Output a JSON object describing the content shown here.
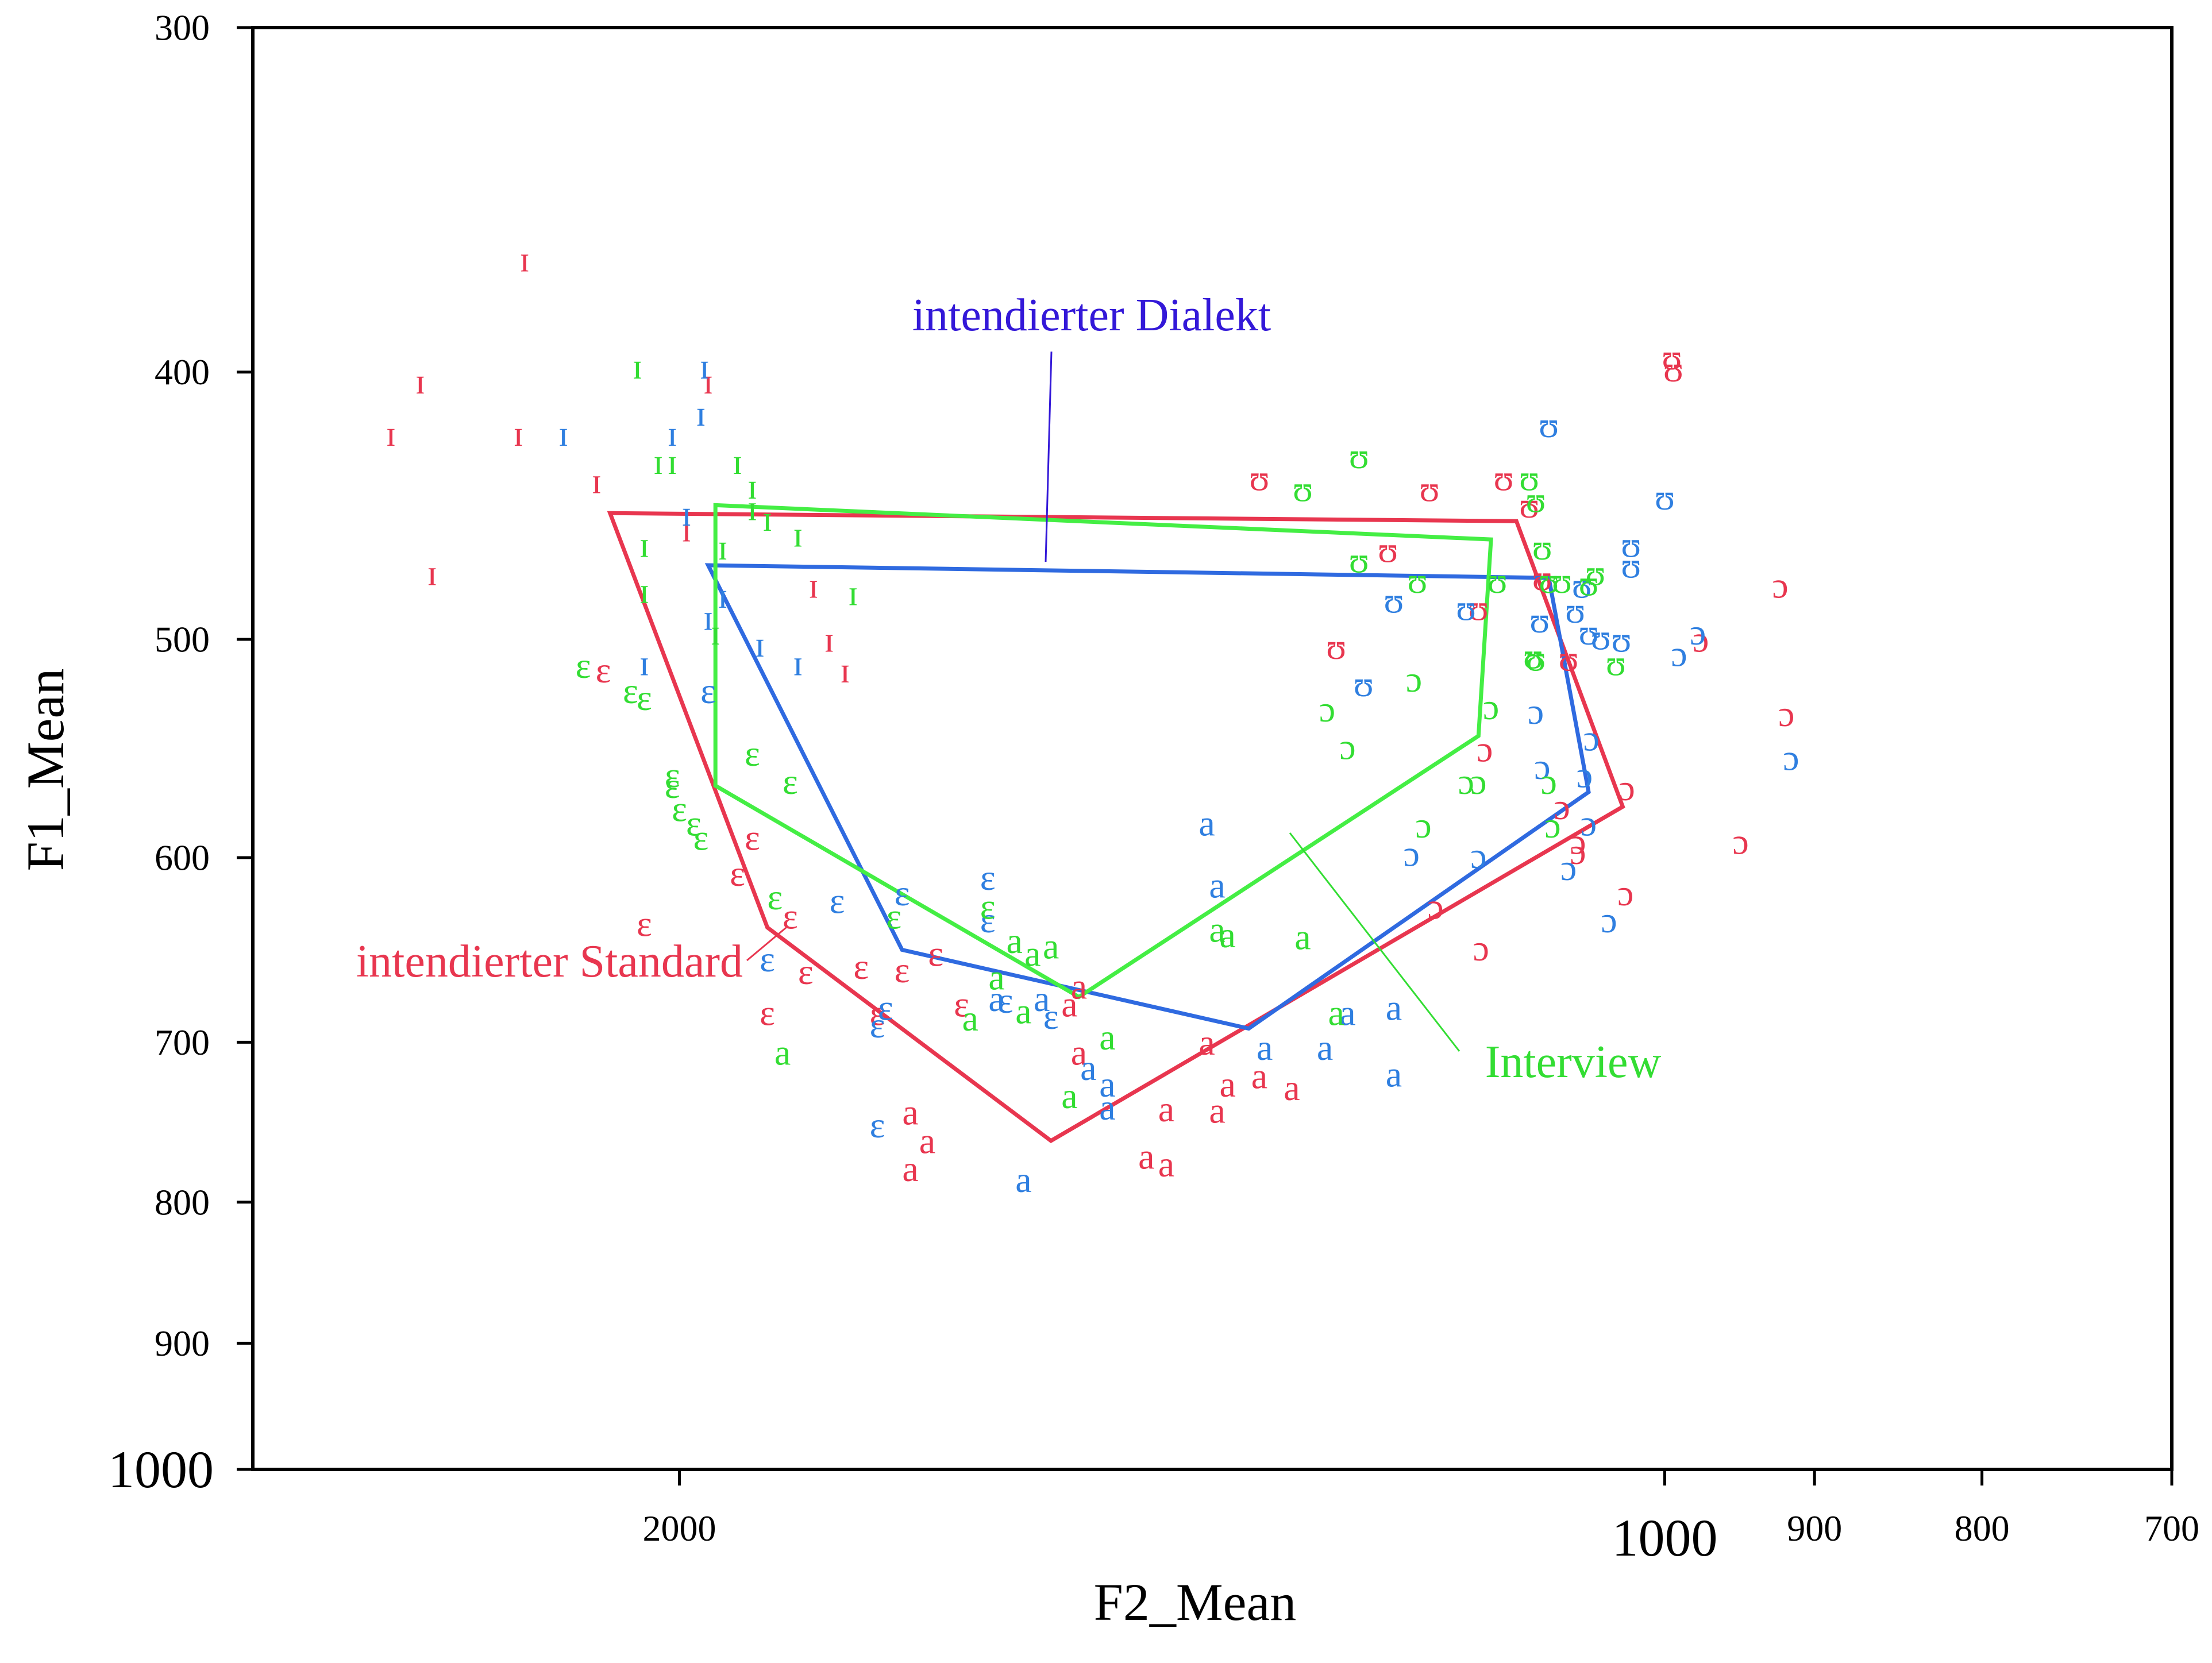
{
  "chart_data": {
    "type": "scatter",
    "xlabel": "F2_Mean",
    "ylabel": "F1_Mean",
    "x_scale": "log",
    "y_scale": "log",
    "x_reversed": true,
    "y_reversed": true,
    "xlim": [
      2700,
      700
    ],
    "ylim": [
      300,
      1000
    ],
    "x_ticks": [
      {
        "value": 2000,
        "label": "2000"
      },
      {
        "value": 1000,
        "label": "1000"
      },
      {
        "value": 900,
        "label": "900"
      },
      {
        "value": 800,
        "label": "800"
      },
      {
        "value": 700,
        "label": "700"
      }
    ],
    "y_ticks": [
      {
        "value": 300,
        "label": "300"
      },
      {
        "value": 400,
        "label": "400"
      },
      {
        "value": 500,
        "label": "500"
      },
      {
        "value": 600,
        "label": "600"
      },
      {
        "value": 700,
        "label": "700"
      },
      {
        "value": 800,
        "label": "800"
      },
      {
        "value": 900,
        "label": "900"
      },
      {
        "value": 1000,
        "label": "1000"
      }
    ],
    "grid": false,
    "legend": "none",
    "series": [
      {
        "name": "intendierter Standard",
        "color": "#e8364f",
        "points": [
          {
            "x": 2230,
            "y": 364,
            "l": "ɪ"
          },
          {
            "x": 2400,
            "y": 403,
            "l": "ɪ"
          },
          {
            "x": 2450,
            "y": 421,
            "l": "ɪ"
          },
          {
            "x": 2240,
            "y": 421,
            "l": "ɪ"
          },
          {
            "x": 2120,
            "y": 438,
            "l": "ɪ"
          },
          {
            "x": 1990,
            "y": 456,
            "l": "ɪ"
          },
          {
            "x": 2380,
            "y": 473,
            "l": "ɪ"
          },
          {
            "x": 1960,
            "y": 403,
            "l": "ɪ"
          },
          {
            "x": 1820,
            "y": 478,
            "l": "ɪ"
          },
          {
            "x": 1800,
            "y": 500,
            "l": "ɪ"
          },
          {
            "x": 1780,
            "y": 513,
            "l": "ɪ"
          },
          {
            "x": 2110,
            "y": 513,
            "l": "ɛ"
          },
          {
            "x": 1900,
            "y": 590,
            "l": "ɛ"
          },
          {
            "x": 1920,
            "y": 608,
            "l": "ɛ"
          },
          {
            "x": 1850,
            "y": 630,
            "l": "ɛ"
          },
          {
            "x": 2050,
            "y": 634,
            "l": "ɛ"
          },
          {
            "x": 1830,
            "y": 660,
            "l": "ɛ"
          },
          {
            "x": 1760,
            "y": 657,
            "l": "ɛ"
          },
          {
            "x": 1710,
            "y": 659,
            "l": "ɛ"
          },
          {
            "x": 1670,
            "y": 650,
            "l": "ɛ"
          },
          {
            "x": 1880,
            "y": 683,
            "l": "ɛ"
          },
          {
            "x": 1740,
            "y": 683,
            "l": "ɛ"
          },
          {
            "x": 1640,
            "y": 678,
            "l": "ɛ"
          },
          {
            "x": 1700,
            "y": 742,
            "l": "a"
          },
          {
            "x": 1680,
            "y": 760,
            "l": "a"
          },
          {
            "x": 1700,
            "y": 778,
            "l": "a"
          },
          {
            "x": 1510,
            "y": 668,
            "l": "a"
          },
          {
            "x": 1520,
            "y": 678,
            "l": "a"
          },
          {
            "x": 1510,
            "y": 706,
            "l": "a"
          },
          {
            "x": 1420,
            "y": 740,
            "l": "a"
          },
          {
            "x": 1440,
            "y": 770,
            "l": "a"
          },
          {
            "x": 1420,
            "y": 775,
            "l": "a"
          },
          {
            "x": 1360,
            "y": 725,
            "l": "a"
          },
          {
            "x": 1330,
            "y": 720,
            "l": "a"
          },
          {
            "x": 1380,
            "y": 700,
            "l": "a"
          },
          {
            "x": 1300,
            "y": 727,
            "l": "a"
          },
          {
            "x": 1370,
            "y": 741,
            "l": "a"
          },
          {
            "x": 1260,
            "y": 503,
            "l": "ʊ"
          },
          {
            "x": 1330,
            "y": 437,
            "l": "ʊ"
          },
          {
            "x": 1120,
            "y": 437,
            "l": "ʊ"
          },
          {
            "x": 1100,
            "y": 447,
            "l": "ʊ"
          },
          {
            "x": 1180,
            "y": 441,
            "l": "ʊ"
          },
          {
            "x": 1215,
            "y": 464,
            "l": "ʊ"
          },
          {
            "x": 1090,
            "y": 475,
            "l": "ʊ"
          },
          {
            "x": 1070,
            "y": 508,
            "l": "ʊ"
          },
          {
            "x": 1140,
            "y": 487,
            "l": "ʊ"
          },
          {
            "x": 995,
            "y": 395,
            "l": "ʊ"
          },
          {
            "x": 994,
            "y": 399,
            "l": "ʊ"
          },
          {
            "x": 922,
            "y": 478,
            "l": "ɔ"
          },
          {
            "x": 975,
            "y": 500,
            "l": "ɔ"
          },
          {
            "x": 918,
            "y": 532,
            "l": "ɔ"
          },
          {
            "x": 1135,
            "y": 548,
            "l": "ɔ"
          },
          {
            "x": 1027,
            "y": 566,
            "l": "ɔ"
          },
          {
            "x": 1075,
            "y": 575,
            "l": "ɔ"
          },
          {
            "x": 1063,
            "y": 592,
            "l": "ɔ"
          },
          {
            "x": 1063,
            "y": 597,
            "l": "ɔ"
          },
          {
            "x": 1028,
            "y": 618,
            "l": "ɔ"
          },
          {
            "x": 948,
            "y": 592,
            "l": "ɔ"
          },
          {
            "x": 1138,
            "y": 647,
            "l": "ɔ"
          },
          {
            "x": 1175,
            "y": 625,
            "l": "ɔ"
          }
        ]
      },
      {
        "name": "intendierter Dialekt",
        "color": "#2f7fe0",
        "points": [
          {
            "x": 1965,
            "y": 398,
            "l": "ɪ"
          },
          {
            "x": 1970,
            "y": 414,
            "l": "ɪ"
          },
          {
            "x": 2010,
            "y": 421,
            "l": "ɪ"
          },
          {
            "x": 2170,
            "y": 421,
            "l": "ɪ"
          },
          {
            "x": 1990,
            "y": 450,
            "l": "ɪ"
          },
          {
            "x": 1940,
            "y": 482,
            "l": "ɪ"
          },
          {
            "x": 1960,
            "y": 491,
            "l": "ɪ"
          },
          {
            "x": 1890,
            "y": 502,
            "l": "ɪ"
          },
          {
            "x": 1840,
            "y": 510,
            "l": "ɪ"
          },
          {
            "x": 2050,
            "y": 510,
            "l": "ɪ"
          },
          {
            "x": 1960,
            "y": 522,
            "l": "ɛ"
          },
          {
            "x": 1710,
            "y": 618,
            "l": "ɛ"
          },
          {
            "x": 1790,
            "y": 622,
            "l": "ɛ"
          },
          {
            "x": 1610,
            "y": 632,
            "l": "ɛ"
          },
          {
            "x": 1610,
            "y": 610,
            "l": "ɛ"
          },
          {
            "x": 1880,
            "y": 653,
            "l": "ɛ"
          },
          {
            "x": 1730,
            "y": 680,
            "l": "ɛ"
          },
          {
            "x": 1590,
            "y": 676,
            "l": "ɛ"
          },
          {
            "x": 1740,
            "y": 690,
            "l": "ɛ"
          },
          {
            "x": 1540,
            "y": 685,
            "l": "ɛ"
          },
          {
            "x": 1740,
            "y": 750,
            "l": "ɛ"
          },
          {
            "x": 1380,
            "y": 583,
            "l": "a"
          },
          {
            "x": 1370,
            "y": 614,
            "l": "a"
          },
          {
            "x": 1550,
            "y": 675,
            "l": "a"
          },
          {
            "x": 1600,
            "y": 675,
            "l": "a"
          },
          {
            "x": 1250,
            "y": 683,
            "l": "a"
          },
          {
            "x": 1210,
            "y": 680,
            "l": "a"
          },
          {
            "x": 1270,
            "y": 703,
            "l": "a"
          },
          {
            "x": 1325,
            "y": 703,
            "l": "a"
          },
          {
            "x": 1210,
            "y": 719,
            "l": "a"
          },
          {
            "x": 1500,
            "y": 715,
            "l": "a"
          },
          {
            "x": 1480,
            "y": 725,
            "l": "a"
          },
          {
            "x": 1480,
            "y": 739,
            "l": "a"
          },
          {
            "x": 1570,
            "y": 785,
            "l": "a"
          },
          {
            "x": 1085,
            "y": 418,
            "l": "ʊ"
          },
          {
            "x": 1060,
            "y": 478,
            "l": "ʊ"
          },
          {
            "x": 1150,
            "y": 487,
            "l": "ʊ"
          },
          {
            "x": 1065,
            "y": 488,
            "l": "ʊ"
          },
          {
            "x": 1092,
            "y": 492,
            "l": "ʊ"
          },
          {
            "x": 1055,
            "y": 497,
            "l": "ʊ"
          },
          {
            "x": 1046,
            "y": 499,
            "l": "ʊ"
          },
          {
            "x": 1210,
            "y": 484,
            "l": "ʊ"
          },
          {
            "x": 1236,
            "y": 519,
            "l": "ʊ"
          },
          {
            "x": 1031,
            "y": 500,
            "l": "ʊ"
          },
          {
            "x": 1000,
            "y": 444,
            "l": "ʊ"
          },
          {
            "x": 1024,
            "y": 462,
            "l": "ʊ"
          },
          {
            "x": 1024,
            "y": 470,
            "l": "ʊ"
          },
          {
            "x": 977,
            "y": 497,
            "l": "ɔ"
          },
          {
            "x": 990,
            "y": 506,
            "l": "ɔ"
          },
          {
            "x": 915,
            "y": 552,
            "l": "ɔ"
          },
          {
            "x": 1053,
            "y": 543,
            "l": "ɔ"
          },
          {
            "x": 1058,
            "y": 560,
            "l": "ɔ"
          },
          {
            "x": 1095,
            "y": 531,
            "l": "ɔ"
          },
          {
            "x": 1090,
            "y": 556,
            "l": "ɔ"
          },
          {
            "x": 1055,
            "y": 583,
            "l": "ɔ"
          },
          {
            "x": 1195,
            "y": 598,
            "l": "ɔ"
          },
          {
            "x": 1140,
            "y": 599,
            "l": "ɔ"
          },
          {
            "x": 1070,
            "y": 605,
            "l": "ɔ"
          },
          {
            "x": 1040,
            "y": 632,
            "l": "ɔ"
          }
        ]
      },
      {
        "name": "Interview",
        "color": "#33dd33",
        "points": [
          {
            "x": 2060,
            "y": 398,
            "l": "ɪ"
          },
          {
            "x": 2030,
            "y": 431,
            "l": "ɪ"
          },
          {
            "x": 2010,
            "y": 431,
            "l": "ɪ"
          },
          {
            "x": 1920,
            "y": 431,
            "l": "ɪ"
          },
          {
            "x": 1900,
            "y": 440,
            "l": "ɪ"
          },
          {
            "x": 1900,
            "y": 448,
            "l": "ɪ"
          },
          {
            "x": 1880,
            "y": 452,
            "l": "ɪ"
          },
          {
            "x": 1840,
            "y": 458,
            "l": "ɪ"
          },
          {
            "x": 1940,
            "y": 463,
            "l": "ɪ"
          },
          {
            "x": 2050,
            "y": 462,
            "l": "ɪ"
          },
          {
            "x": 2050,
            "y": 480,
            "l": "ɪ"
          },
          {
            "x": 1770,
            "y": 481,
            "l": "ɪ"
          },
          {
            "x": 1950,
            "y": 497,
            "l": "ɪ"
          },
          {
            "x": 2140,
            "y": 511,
            "l": "ɛ"
          },
          {
            "x": 2070,
            "y": 522,
            "l": "ɛ"
          },
          {
            "x": 2050,
            "y": 525,
            "l": "ɛ"
          },
          {
            "x": 1900,
            "y": 550,
            "l": "ɛ"
          },
          {
            "x": 2010,
            "y": 560,
            "l": "ɛ"
          },
          {
            "x": 2010,
            "y": 565,
            "l": "ɛ"
          },
          {
            "x": 1850,
            "y": 563,
            "l": "ɛ"
          },
          {
            "x": 2000,
            "y": 576,
            "l": "ɛ"
          },
          {
            "x": 1980,
            "y": 583,
            "l": "ɛ"
          },
          {
            "x": 1970,
            "y": 590,
            "l": "ɛ"
          },
          {
            "x": 1870,
            "y": 620,
            "l": "ɛ"
          },
          {
            "x": 1720,
            "y": 630,
            "l": "ɛ"
          },
          {
            "x": 1610,
            "y": 625,
            "l": "ɛ"
          },
          {
            "x": 1370,
            "y": 637,
            "l": "a"
          },
          {
            "x": 1360,
            "y": 640,
            "l": "a"
          },
          {
            "x": 1580,
            "y": 643,
            "l": "a"
          },
          {
            "x": 1560,
            "y": 650,
            "l": "a"
          },
          {
            "x": 1540,
            "y": 646,
            "l": "a"
          },
          {
            "x": 1600,
            "y": 663,
            "l": "a"
          },
          {
            "x": 1290,
            "y": 641,
            "l": "a"
          },
          {
            "x": 1630,
            "y": 686,
            "l": "a"
          },
          {
            "x": 1570,
            "y": 682,
            "l": "a"
          },
          {
            "x": 1480,
            "y": 697,
            "l": "a"
          },
          {
            "x": 1520,
            "y": 732,
            "l": "a"
          },
          {
            "x": 1860,
            "y": 706,
            "l": "a"
          },
          {
            "x": 1260,
            "y": 683,
            "l": "a"
          },
          {
            "x": 1240,
            "y": 429,
            "l": "ʊ"
          },
          {
            "x": 1290,
            "y": 441,
            "l": "ʊ"
          },
          {
            "x": 1100,
            "y": 437,
            "l": "ʊ"
          },
          {
            "x": 1095,
            "y": 445,
            "l": "ʊ"
          },
          {
            "x": 1240,
            "y": 468,
            "l": "ʊ"
          },
          {
            "x": 1190,
            "y": 476,
            "l": "ʊ"
          },
          {
            "x": 1125,
            "y": 476,
            "l": "ʊ"
          },
          {
            "x": 1090,
            "y": 463,
            "l": "ʊ"
          },
          {
            "x": 1085,
            "y": 476,
            "l": "ʊ"
          },
          {
            "x": 1075,
            "y": 476,
            "l": "ʊ"
          },
          {
            "x": 1055,
            "y": 477,
            "l": "ʊ"
          },
          {
            "x": 1050,
            "y": 473,
            "l": "ʊ"
          },
          {
            "x": 1097,
            "y": 507,
            "l": "ʊ"
          },
          {
            "x": 1095,
            "y": 508,
            "l": "ʊ"
          },
          {
            "x": 1035,
            "y": 510,
            "l": "ʊ"
          },
          {
            "x": 1193,
            "y": 517,
            "l": "ɔ"
          },
          {
            "x": 1268,
            "y": 530,
            "l": "ɔ"
          },
          {
            "x": 1250,
            "y": 547,
            "l": "ɔ"
          },
          {
            "x": 1130,
            "y": 529,
            "l": "ɔ"
          },
          {
            "x": 1140,
            "y": 563,
            "l": "ɔ"
          },
          {
            "x": 1150,
            "y": 563,
            "l": "ɔ"
          },
          {
            "x": 1185,
            "y": 584,
            "l": "ɔ"
          },
          {
            "x": 1085,
            "y": 563,
            "l": "ɔ"
          },
          {
            "x": 1082,
            "y": 584,
            "l": "ɔ"
          }
        ]
      }
    ],
    "polygons": [
      {
        "series": "intendierter Standard",
        "color": "#e8364f",
        "vertices": [
          [
            2100,
            450
          ],
          [
            1110,
            453
          ],
          [
            1030,
            575
          ],
          [
            1540,
            760
          ],
          [
            1880,
            636
          ]
        ]
      },
      {
        "series": "intendierter Dialekt",
        "color": "#2f6ae0",
        "vertices": [
          [
            1960,
            470
          ],
          [
            1085,
            475
          ],
          [
            1055,
            568
          ],
          [
            1340,
            692
          ],
          [
            1710,
            648
          ]
        ]
      },
      {
        "series": "Interview",
        "color": "#44ee44",
        "vertices": [
          [
            1950,
            447
          ],
          [
            1130,
            460
          ],
          [
            1140,
            542
          ],
          [
            1510,
            674
          ],
          [
            1950,
            565
          ]
        ]
      }
    ],
    "annotations": [
      {
        "text": "intendierter Dialekt",
        "color": "#3318d8",
        "series": "intendierter Dialekt"
      },
      {
        "text": "intendierter Standard",
        "color": "#e8364f",
        "series": "intendierter Standard"
      },
      {
        "text": "Interview",
        "color": "#33dd33",
        "series": "Interview"
      }
    ]
  }
}
